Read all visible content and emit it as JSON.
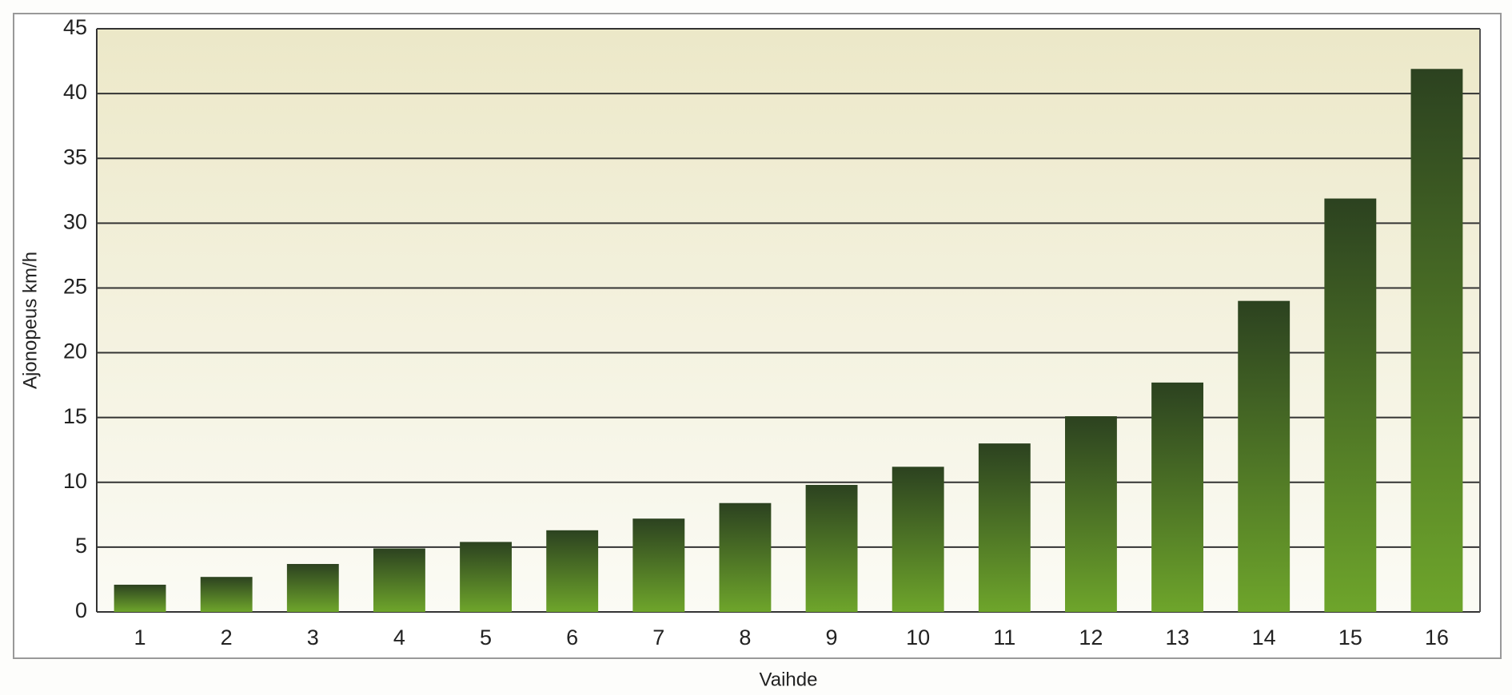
{
  "chart_data": {
    "type": "bar",
    "x_label": "Vaihde",
    "y_label": "Ajonopeus km/h",
    "categories": [
      "1",
      "2",
      "3",
      "4",
      "5",
      "6",
      "7",
      "8",
      "9",
      "10",
      "11",
      "12",
      "13",
      "14",
      "15",
      "16"
    ],
    "values": [
      2.1,
      2.7,
      3.7,
      4.9,
      5.4,
      6.3,
      7.2,
      8.4,
      9.8,
      11.2,
      13.0,
      15.1,
      17.7,
      24.0,
      31.9,
      41.9
    ],
    "colors": [
      "#2c4220",
      "#6ea52b"
    ],
    "ylim": [
      0,
      45
    ],
    "yticks": [
      0,
      5,
      10,
      15,
      20,
      25,
      30,
      35,
      40,
      45
    ],
    "grid": true
  }
}
